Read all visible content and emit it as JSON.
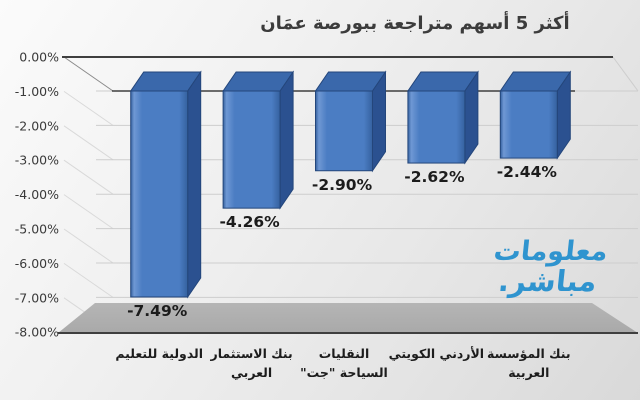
{
  "chart_data": {
    "type": "bar",
    "style": "3d-column",
    "title": "أكثر 5 أسهم متراجعة ببورصة عمَان",
    "xlabel": "",
    "ylabel": "",
    "ylim": [
      -8,
      0
    ],
    "grid": true,
    "legend": false,
    "categories": [
      [
        "الدولية للتعليم"
      ],
      [
        "بنك الاستثمار",
        "العربي"
      ],
      [
        "النقليات",
        "السياحة \"جت\""
      ],
      [
        "الأردني الكويتي"
      ],
      [
        "بنك المؤسسة",
        "العربية"
      ]
    ],
    "values": [
      -7.49,
      -4.26,
      -2.9,
      -2.62,
      -2.44
    ],
    "data_labels": [
      "-7.49%",
      "-4.26%",
      "-2.90%",
      "-2.62%",
      "-2.44%"
    ],
    "y_ticks": [
      "0.00%",
      "-1.00%",
      "-2.00%",
      "-3.00%",
      "-4.00%",
      "-5.00%",
      "-6.00%",
      "-7.00%",
      "-8.00%"
    ],
    "colors": {
      "bar_front": "#4b7dc3",
      "bar_front_light": "#6f98d4",
      "bar_front_dark": "#35619f",
      "bar_top": "#3a68ab",
      "bar_side": "#2b5190",
      "bar_stroke": "#24467b",
      "axis": "#3f3f3f",
      "gridline": "#cdcdcd",
      "wall_line": "#d9d9d9",
      "floor": "#b5b5b5",
      "floor_dark": "#a9a9a9",
      "tick_text": "#3a3a3a",
      "label_text": "#1c1c1c"
    }
  },
  "watermark": {
    "line1": "معلومات",
    "line2": "مباشر."
  }
}
